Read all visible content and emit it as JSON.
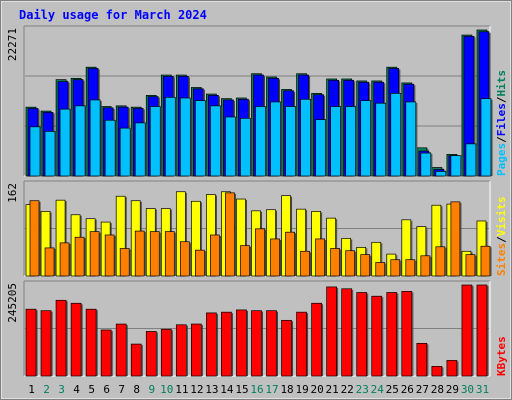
{
  "title": "Daily usage for March 2024",
  "colors": {
    "frame": "#c0c0c0",
    "plot_bg": "#c0c0c0",
    "grid": "#808080",
    "title": "#0000ff",
    "hits": "#00805c",
    "files": "#0000ff",
    "pages": "#00c0ff",
    "visits": "#ffff00",
    "sites": "#ff8000",
    "kbytes": "#ff0000",
    "day_black": "#000000",
    "day_weekend": "#00805c"
  },
  "chart_data": [
    {
      "type": "bar",
      "name": "hits-files-pages",
      "ymax_label": "22271",
      "ylim": [
        0,
        22271
      ],
      "ylabel_parts": [
        "Pages",
        "Files",
        "Hits"
      ],
      "series": [
        {
          "name": "Hits",
          "values": [
            10500,
            9900,
            14700,
            14900,
            16600,
            10600,
            10700,
            10500,
            12300,
            15400,
            15400,
            13500,
            12500,
            11800,
            11900,
            15600,
            15100,
            13200,
            15600,
            12600,
            14800,
            14800,
            14500,
            14500,
            16600,
            14200,
            4300,
            1300,
            3300,
            21500,
            22271
          ]
        },
        {
          "name": "Files",
          "values": [
            10300,
            9700,
            14400,
            14700,
            16400,
            10400,
            10500,
            10300,
            12100,
            15200,
            15200,
            13300,
            12300,
            11600,
            11700,
            15400,
            14900,
            13000,
            15400,
            12400,
            14600,
            14600,
            14300,
            14300,
            16400,
            14000,
            3800,
            1000,
            3100,
            21300,
            22000
          ]
        },
        {
          "name": "Pages",
          "values": [
            7500,
            6800,
            10200,
            10700,
            11600,
            8500,
            7300,
            8100,
            10600,
            12000,
            11900,
            11500,
            10700,
            9000,
            8800,
            10600,
            11300,
            10600,
            11700,
            8600,
            10600,
            10600,
            11500,
            11100,
            12600,
            11300,
            3500,
            700,
            3100,
            4900,
            11800
          ]
        }
      ],
      "categories": [
        "1",
        "2",
        "3",
        "4",
        "5",
        "6",
        "7",
        "8",
        "9",
        "10",
        "11",
        "12",
        "13",
        "14",
        "15",
        "16",
        "17",
        "18",
        "19",
        "20",
        "21",
        "22",
        "23",
        "24",
        "25",
        "26",
        "27",
        "28",
        "29",
        "30",
        "31"
      ]
    },
    {
      "type": "bar",
      "name": "visits-sites",
      "ymax_label": "162",
      "ylim": [
        0,
        162
      ],
      "ylabel_parts": [
        "Sites",
        "Visits"
      ],
      "series": [
        {
          "name": "Visits",
          "values": [
            127,
            115,
            135,
            109,
            102,
            96,
            142,
            134,
            120,
            120,
            150,
            133,
            145,
            150,
            137,
            116,
            118,
            143,
            119,
            115,
            103,
            67,
            51,
            60,
            39,
            100,
            88,
            126,
            128,
            44,
            98
          ]
        },
        {
          "name": "Sites",
          "values": [
            134,
            50,
            59,
            69,
            79,
            73,
            49,
            80,
            79,
            79,
            61,
            46,
            73,
            148,
            54,
            84,
            66,
            78,
            44,
            66,
            49,
            45,
            38,
            24,
            29,
            29,
            36,
            52,
            132,
            38,
            53
          ]
        }
      ],
      "categories": [
        "1",
        "2",
        "3",
        "4",
        "5",
        "6",
        "7",
        "8",
        "9",
        "10",
        "11",
        "12",
        "13",
        "14",
        "15",
        "16",
        "17",
        "18",
        "19",
        "20",
        "21",
        "22",
        "23",
        "24",
        "25",
        "26",
        "27",
        "28",
        "29",
        "30",
        "31"
      ]
    },
    {
      "type": "bar",
      "name": "kbytes",
      "ymax_label": "245205",
      "ylim": [
        0,
        245205
      ],
      "ylabel_parts": [
        "KBytes"
      ],
      "series": [
        {
          "name": "KBytes",
          "values": [
            180000,
            176000,
            204000,
            196000,
            180000,
            124000,
            140000,
            86000,
            120000,
            126000,
            138000,
            140000,
            170000,
            172000,
            178000,
            176000,
            176000,
            150000,
            172000,
            196000,
            240000,
            235000,
            225000,
            215000,
            225000,
            228000,
            88000,
            26000,
            42000,
            245205,
            245205
          ]
        }
      ],
      "categories": [
        "1",
        "2",
        "3",
        "4",
        "5",
        "6",
        "7",
        "8",
        "9",
        "10",
        "11",
        "12",
        "13",
        "14",
        "15",
        "16",
        "17",
        "18",
        "19",
        "20",
        "21",
        "22",
        "23",
        "24",
        "25",
        "26",
        "27",
        "28",
        "29",
        "30",
        "31"
      ]
    }
  ],
  "x_labels": [
    "1",
    "2",
    "3",
    "4",
    "5",
    "6",
    "7",
    "8",
    "9",
    "10",
    "11",
    "12",
    "13",
    "14",
    "15",
    "16",
    "17",
    "18",
    "19",
    "20",
    "21",
    "22",
    "23",
    "24",
    "25",
    "26",
    "27",
    "28",
    "29",
    "30",
    "31"
  ],
  "weekend_days": [
    "2",
    "3",
    "9",
    "10",
    "16",
    "17",
    "23",
    "24",
    "30",
    "31"
  ]
}
